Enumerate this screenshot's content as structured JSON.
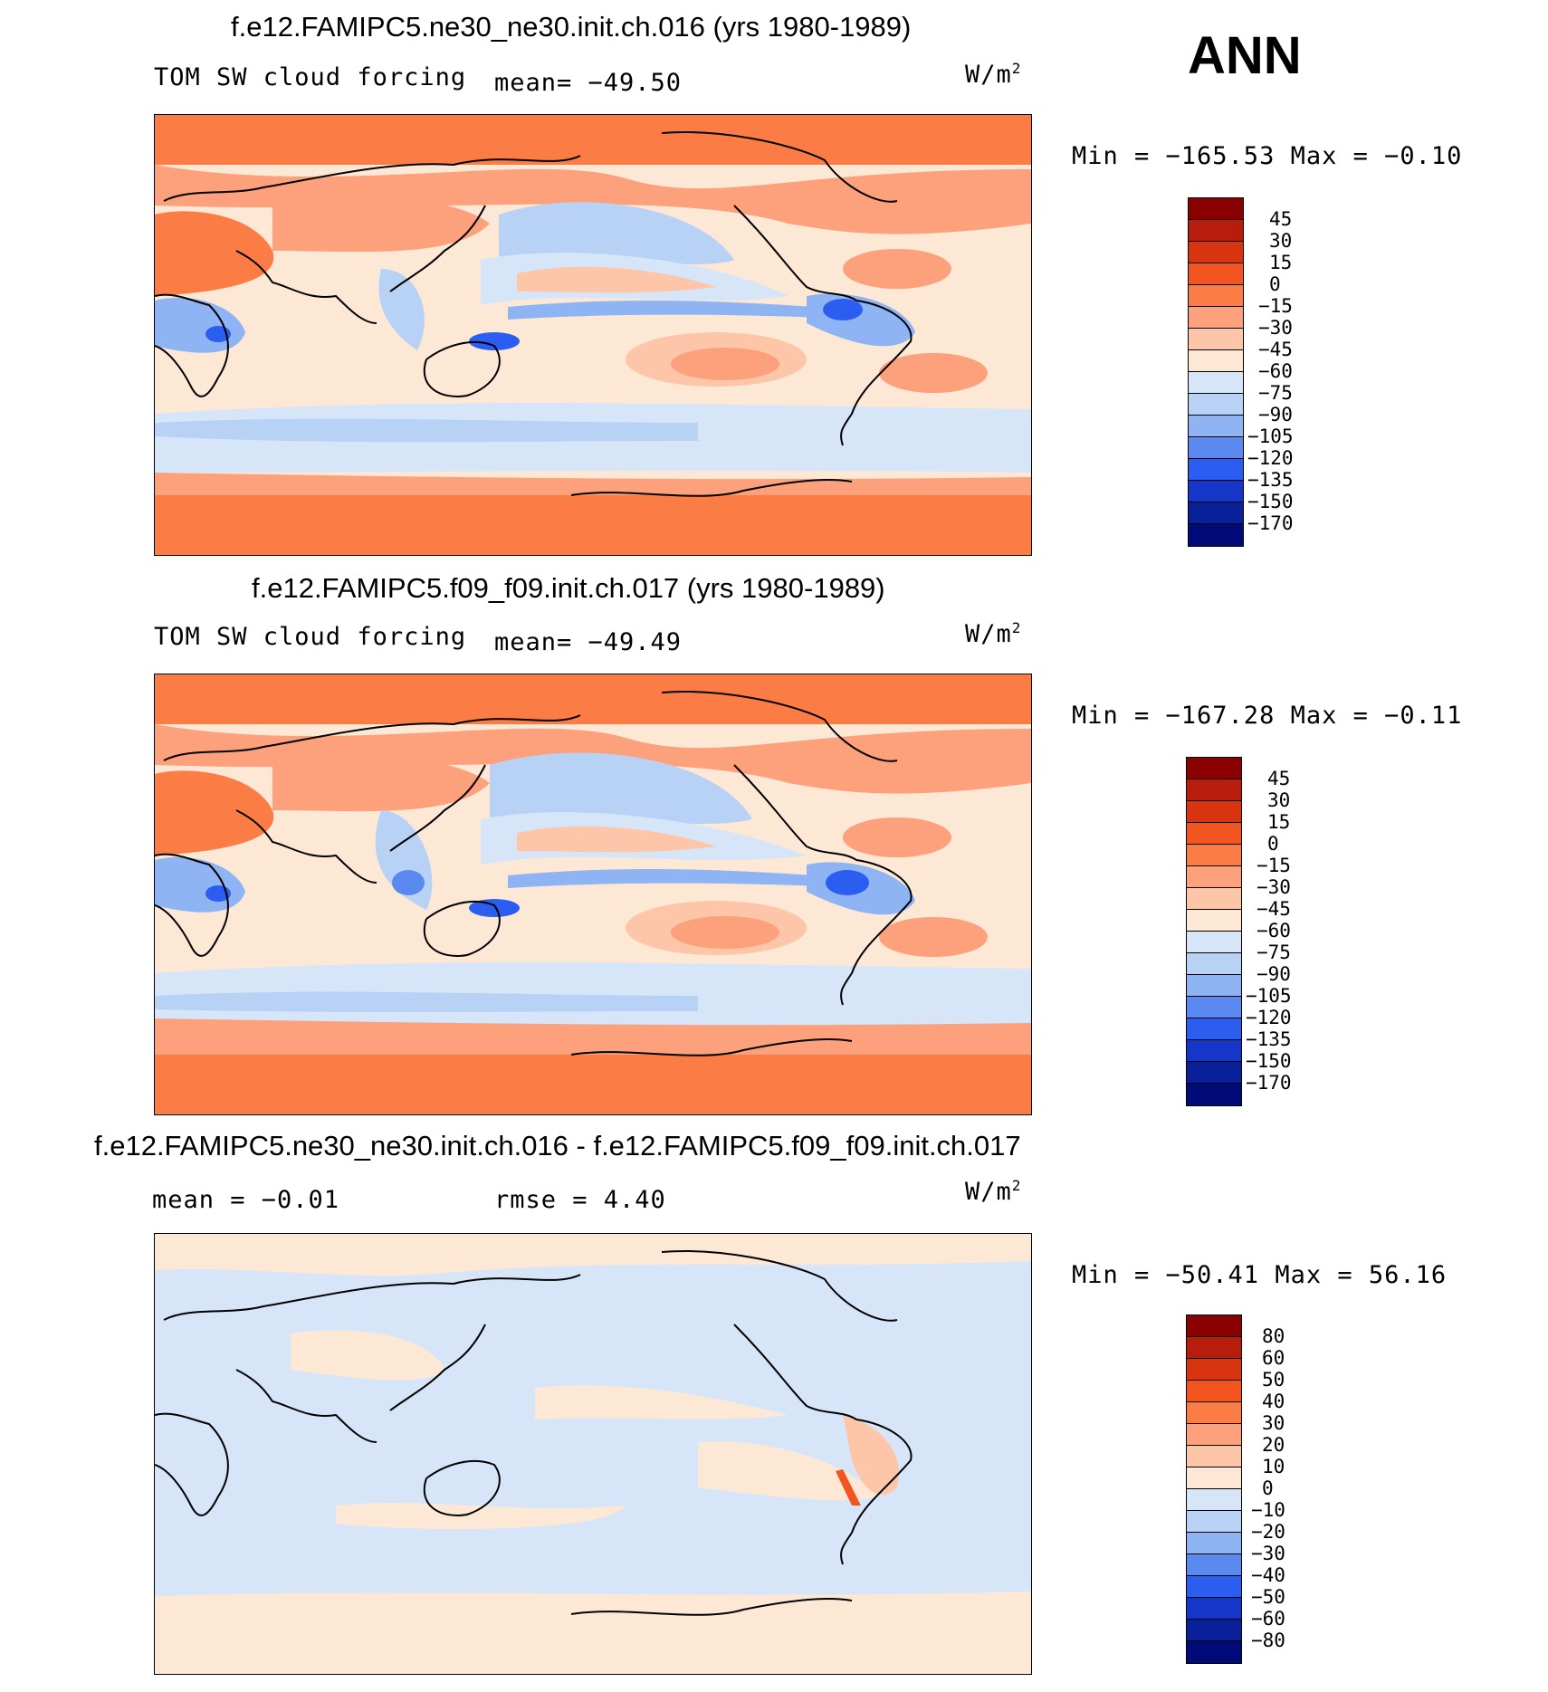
{
  "season": "ANN",
  "panels": [
    {
      "title": "f.e12.FAMIPC5.ne30_ne30.init.ch.016 (yrs 1980-1989)",
      "left_label": "TOM SW cloud forcing",
      "mid_label": "mean= −49.50",
      "units": "W/m",
      "units_sup": "2",
      "minmax": "Min = −165.53 Max =  −0.10",
      "colorbar_levels": [
        "45",
        "30",
        "15",
        "0",
        "−15",
        "−30",
        "−45",
        "−60",
        "−75",
        "−90",
        "−105",
        "−120",
        "−135",
        "−150",
        "−170"
      ],
      "colorbar_colors": [
        "#8b0000",
        "#b71c0c",
        "#d93410",
        "#f2551f",
        "#fb7d45",
        "#fca17c",
        "#fdc6a8",
        "#fde8d6",
        "#d6e6f8",
        "#b8d2f6",
        "#8eb4f4",
        "#5a8af0",
        "#2b5ef0",
        "#1536c8",
        "#0a1f9a",
        "#000a78"
      ]
    },
    {
      "title": "f.e12.FAMIPC5.f09_f09.init.ch.017 (yrs 1980-1989)",
      "left_label": "TOM SW cloud forcing",
      "mid_label": "mean= −49.49",
      "units": "W/m",
      "units_sup": "2",
      "minmax": "Min = −167.28 Max =  −0.11",
      "colorbar_levels": [
        "45",
        "30",
        "15",
        "0",
        "−15",
        "−30",
        "−45",
        "−60",
        "−75",
        "−90",
        "−105",
        "−120",
        "−135",
        "−150",
        "−170"
      ],
      "colorbar_colors": [
        "#8b0000",
        "#b71c0c",
        "#d93410",
        "#f2551f",
        "#fb7d45",
        "#fca17c",
        "#fdc6a8",
        "#fde8d6",
        "#d6e6f8",
        "#b8d2f6",
        "#8eb4f4",
        "#5a8af0",
        "#2b5ef0",
        "#1536c8",
        "#0a1f9a",
        "#000a78"
      ]
    },
    {
      "title": "f.e12.FAMIPC5.ne30_ne30.init.ch.016 - f.e12.FAMIPC5.f09_f09.init.ch.017",
      "left_label": "mean =  −0.01",
      "mid_label": "rmse =    4.40",
      "units": "W/m",
      "units_sup": "2",
      "minmax": "Min = −50.41 Max =  56.16",
      "colorbar_levels": [
        "80",
        "60",
        "50",
        "40",
        "30",
        "20",
        "10",
        "0",
        "−10",
        "−20",
        "−30",
        "−40",
        "−50",
        "−60",
        "−80"
      ],
      "colorbar_colors": [
        "#8b0000",
        "#b71c0c",
        "#d93410",
        "#f2551f",
        "#fb7d45",
        "#fca17c",
        "#fdc6a8",
        "#fde8d6",
        "#d6e6f8",
        "#b8d2f6",
        "#8eb4f4",
        "#5a8af0",
        "#2b5ef0",
        "#1536c8",
        "#0a1f9a",
        "#000a78"
      ]
    }
  ]
}
